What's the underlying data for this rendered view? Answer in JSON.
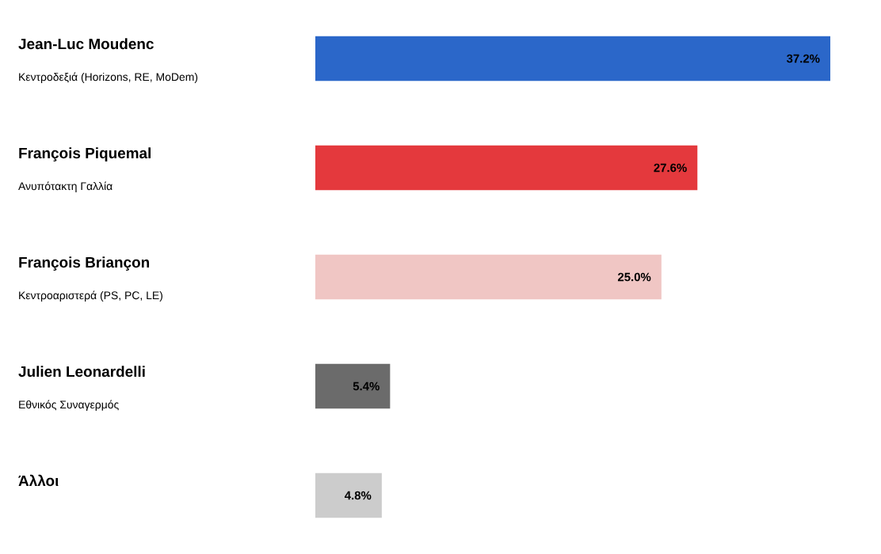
{
  "chart_data": {
    "type": "bar",
    "orientation": "horizontal",
    "categories": [
      "Jean-Luc Moudenc",
      "François Piquemal",
      "François Briançon",
      "Julien Leonardelli",
      "Άλλοι"
    ],
    "annotations": [
      "Κεντροδεξιά (Horizons, RE, MoDem)",
      "Ανυπότακτη Γαλλία",
      "Κεντροαριστερά (PS, PC, LE)",
      "Εθνικός Συναγερμός"
    ],
    "values": [
      37.2,
      27.6,
      25.0,
      5.4,
      4.8
    ],
    "value_labels": [
      "37.2%",
      "27.6%",
      "25.0%",
      "5.4%",
      "4.8%"
    ],
    "colors": [
      "#2b67c9",
      "#e4393d",
      "#f0c6c4",
      "#6b6b6b",
      "#cccccc"
    ]
  }
}
